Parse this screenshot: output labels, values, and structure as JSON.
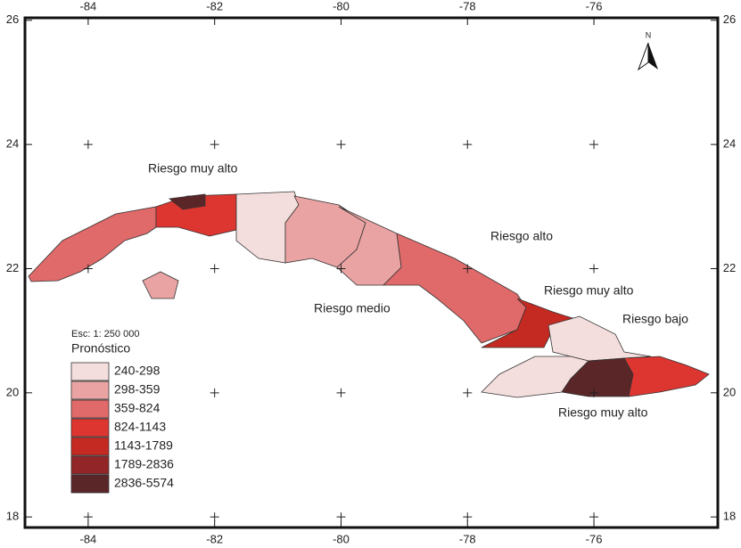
{
  "map": {
    "xlim": [
      -85,
      -74.04
    ],
    "ylim": [
      17.83,
      26.04
    ],
    "xticks": [
      -84,
      -82,
      -80,
      -78,
      -76
    ],
    "yticks": [
      26,
      24,
      22,
      20,
      18
    ],
    "north": "N",
    "annotations": [
      "Riesgo muy alto",
      "Riesgo alto",
      "Riesgo muy alto",
      "Riesgo bajo",
      "Riesgo medio",
      "Riesgo muy alto"
    ],
    "scale": "Esc: 1: 250 000",
    "legend": {
      "title": "Pronóstico",
      "items": [
        {
          "label": "240-298",
          "color": "#f4dedd"
        },
        {
          "label": "298-359",
          "color": "#eaa3a3"
        },
        {
          "label": "359-824",
          "color": "#e06969"
        },
        {
          "label": "824-1143",
          "color": "#dd3530"
        },
        {
          "label": "1143-1789",
          "color": "#c52a22"
        },
        {
          "label": "1789-2836",
          "color": "#922528"
        },
        {
          "label": "2836-5574",
          "color": "#5b2628"
        }
      ]
    }
  }
}
